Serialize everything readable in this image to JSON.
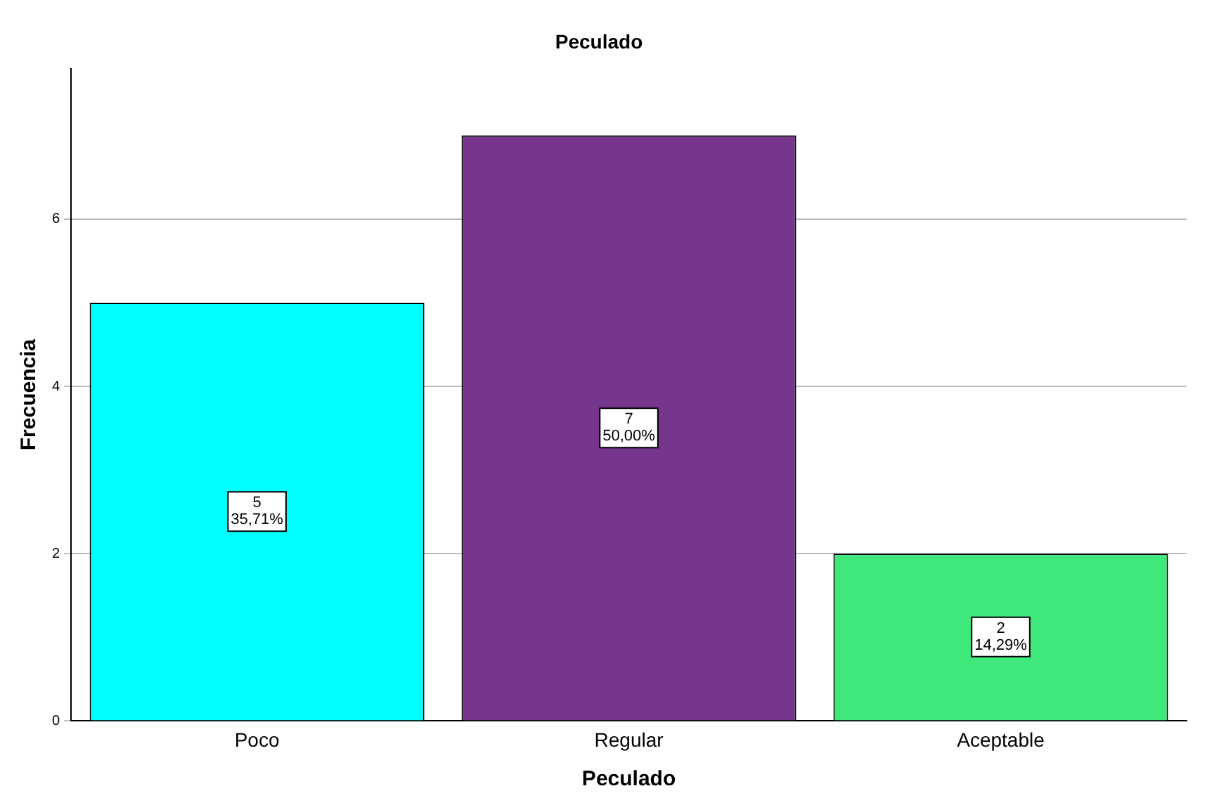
{
  "chart_data": {
    "type": "bar",
    "title": "Peculado",
    "xlabel": "Peculado",
    "ylabel": "Frecuencia",
    "categories": [
      "Poco",
      "Regular",
      "Aceptable"
    ],
    "values": [
      5,
      7,
      2
    ],
    "colors": [
      "#00ffff",
      "#75368c",
      "#3ee87a"
    ],
    "value_labels": [
      "5\n35,71%",
      "7\n50,00%",
      "2\n14,29%"
    ],
    "ylim": [
      0,
      7.8
    ],
    "yticks": [
      0,
      2,
      4,
      6
    ],
    "grid": "y",
    "legend": false
  }
}
